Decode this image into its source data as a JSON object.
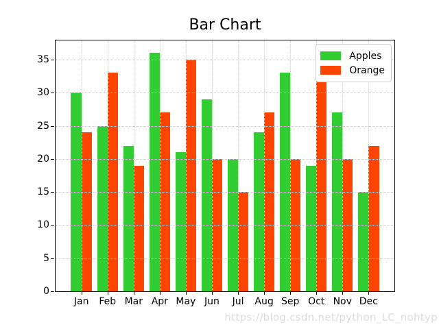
{
  "chart_data": {
    "type": "bar",
    "title": "Bar Chart",
    "categories": [
      "Jan",
      "Feb",
      "Mar",
      "Apr",
      "May",
      "Jun",
      "Jul",
      "Aug",
      "Sep",
      "Oct",
      "Nov",
      "Dec"
    ],
    "series": [
      {
        "name": "Apples",
        "color": "#32CD32",
        "values": [
          30,
          25,
          22,
          36,
          21,
          29,
          20,
          24,
          33,
          19,
          27,
          15
        ]
      },
      {
        "name": "Orange",
        "color": "#FF4500",
        "values": [
          24,
          33,
          19,
          27,
          35,
          20,
          15,
          27,
          20,
          32,
          20,
          22
        ]
      }
    ],
    "yticks": [
      0,
      5,
      10,
      15,
      20,
      25,
      30,
      35
    ],
    "ylim": [
      0,
      37.9
    ],
    "xlabel": "",
    "ylabel": "",
    "grid": true,
    "grid_style": "dotted",
    "legend_position": "upper right",
    "bar_width_ratio": 0.4
  },
  "watermark": {
    "text": "https://blog.csdn.net/python_LC_nohtyp",
    "color": "#dcdcdc"
  }
}
